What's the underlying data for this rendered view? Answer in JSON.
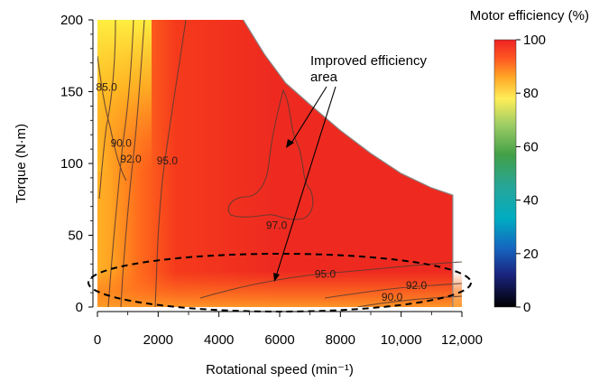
{
  "chart_data": {
    "type": "heatmap",
    "title": "",
    "xlabel": "Rotational speed (min⁻¹)",
    "ylabel": "Torque (N·m)",
    "xlim": [
      0,
      12000
    ],
    "ylim": [
      0,
      200
    ],
    "x_ticks": [
      0,
      2000,
      4000,
      6000,
      8000,
      10000,
      12000
    ],
    "x_tick_labels": [
      "0",
      "2000",
      "4000",
      "6000",
      "8000",
      "10,000",
      "12,000"
    ],
    "y_ticks": [
      0,
      50,
      100,
      150,
      200
    ],
    "y_tick_labels": [
      "0",
      "50",
      "100",
      "150",
      "200"
    ],
    "colorbar": {
      "title": "Motor efficiency (%)",
      "min": 0,
      "max": 100,
      "ticks": [
        0,
        20,
        40,
        60,
        80,
        100
      ],
      "tick_labels": [
        "0",
        "20",
        "40",
        "60",
        "80",
        "100"
      ],
      "color_stops": [
        {
          "value": 0,
          "color": "#000000"
        },
        {
          "value": 12,
          "color": "#1a237e"
        },
        {
          "value": 22,
          "color": "#1565c0"
        },
        {
          "value": 33,
          "color": "#00acc1"
        },
        {
          "value": 45,
          "color": "#26a69a"
        },
        {
          "value": 57,
          "color": "#43a047"
        },
        {
          "value": 68,
          "color": "#9ccc65"
        },
        {
          "value": 78,
          "color": "#ffee58"
        },
        {
          "value": 86,
          "color": "#ffa726"
        },
        {
          "value": 93,
          "color": "#ff5722"
        },
        {
          "value": 100,
          "color": "#ee2222"
        }
      ]
    },
    "operating_boundary": [
      [
        4800,
        200
      ],
      [
        5500,
        176
      ],
      [
        6200,
        156
      ],
      [
        7000,
        141
      ],
      [
        8000,
        123
      ],
      [
        9000,
        107
      ],
      [
        10000,
        93
      ],
      [
        11000,
        83
      ],
      [
        11700,
        78
      ]
    ],
    "contour_labels": [
      {
        "label": "85.0",
        "x": 300,
        "y": 153
      },
      {
        "label": "90.0",
        "x": 780,
        "y": 114
      },
      {
        "label": "92.0",
        "x": 1100,
        "y": 103
      },
      {
        "label": "95.0",
        "x": 2300,
        "y": 102
      },
      {
        "label": "97.0",
        "x": 5900,
        "y": 57
      },
      {
        "label": "95.0",
        "x": 7500,
        "y": 23
      },
      {
        "label": "92.0",
        "x": 10500,
        "y": 15
      },
      {
        "label": "90.0",
        "x": 9700,
        "y": 7
      }
    ],
    "annotation": {
      "text_line1": "Improved efficiency",
      "text_line2": "area"
    }
  }
}
